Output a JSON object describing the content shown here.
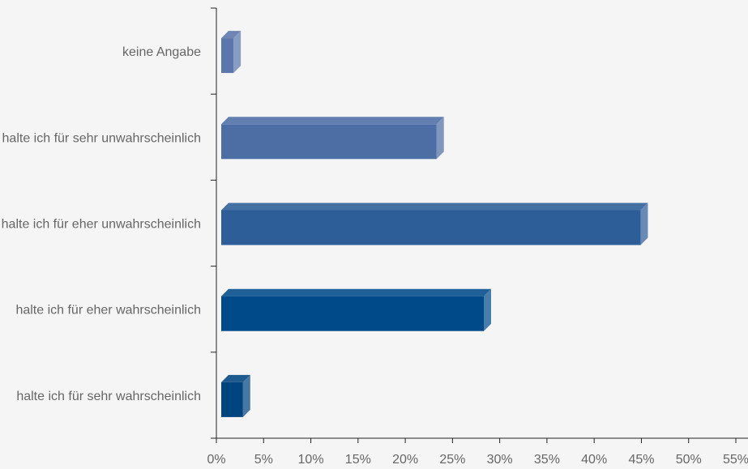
{
  "chart_data": {
    "type": "bar",
    "orientation": "horizontal",
    "title": "",
    "xlabel": "",
    "ylabel": "",
    "xlim": [
      0,
      55
    ],
    "x_ticks": [
      "0%",
      "5%",
      "10%",
      "15%",
      "20%",
      "25%",
      "30%",
      "35%",
      "40%",
      "45%",
      "50%",
      "55%"
    ],
    "x_tick_values": [
      0,
      5,
      10,
      15,
      20,
      25,
      30,
      35,
      40,
      45,
      50,
      55
    ],
    "categories": [
      "keine Angabe",
      "halte ich für sehr unwahrscheinlich",
      "halte ich für eher unwahrscheinlich",
      "halte ich für eher wahrscheinlich",
      "halte ich für sehr wahrscheinlich"
    ],
    "values": [
      1.3,
      22.8,
      44.4,
      27.8,
      2.3
    ],
    "bar_colors": [
      "#5b76aa",
      "#4d6ea4",
      "#2d5e98",
      "#004a8a",
      "#00447f"
    ],
    "grid": false,
    "legend": "none"
  }
}
